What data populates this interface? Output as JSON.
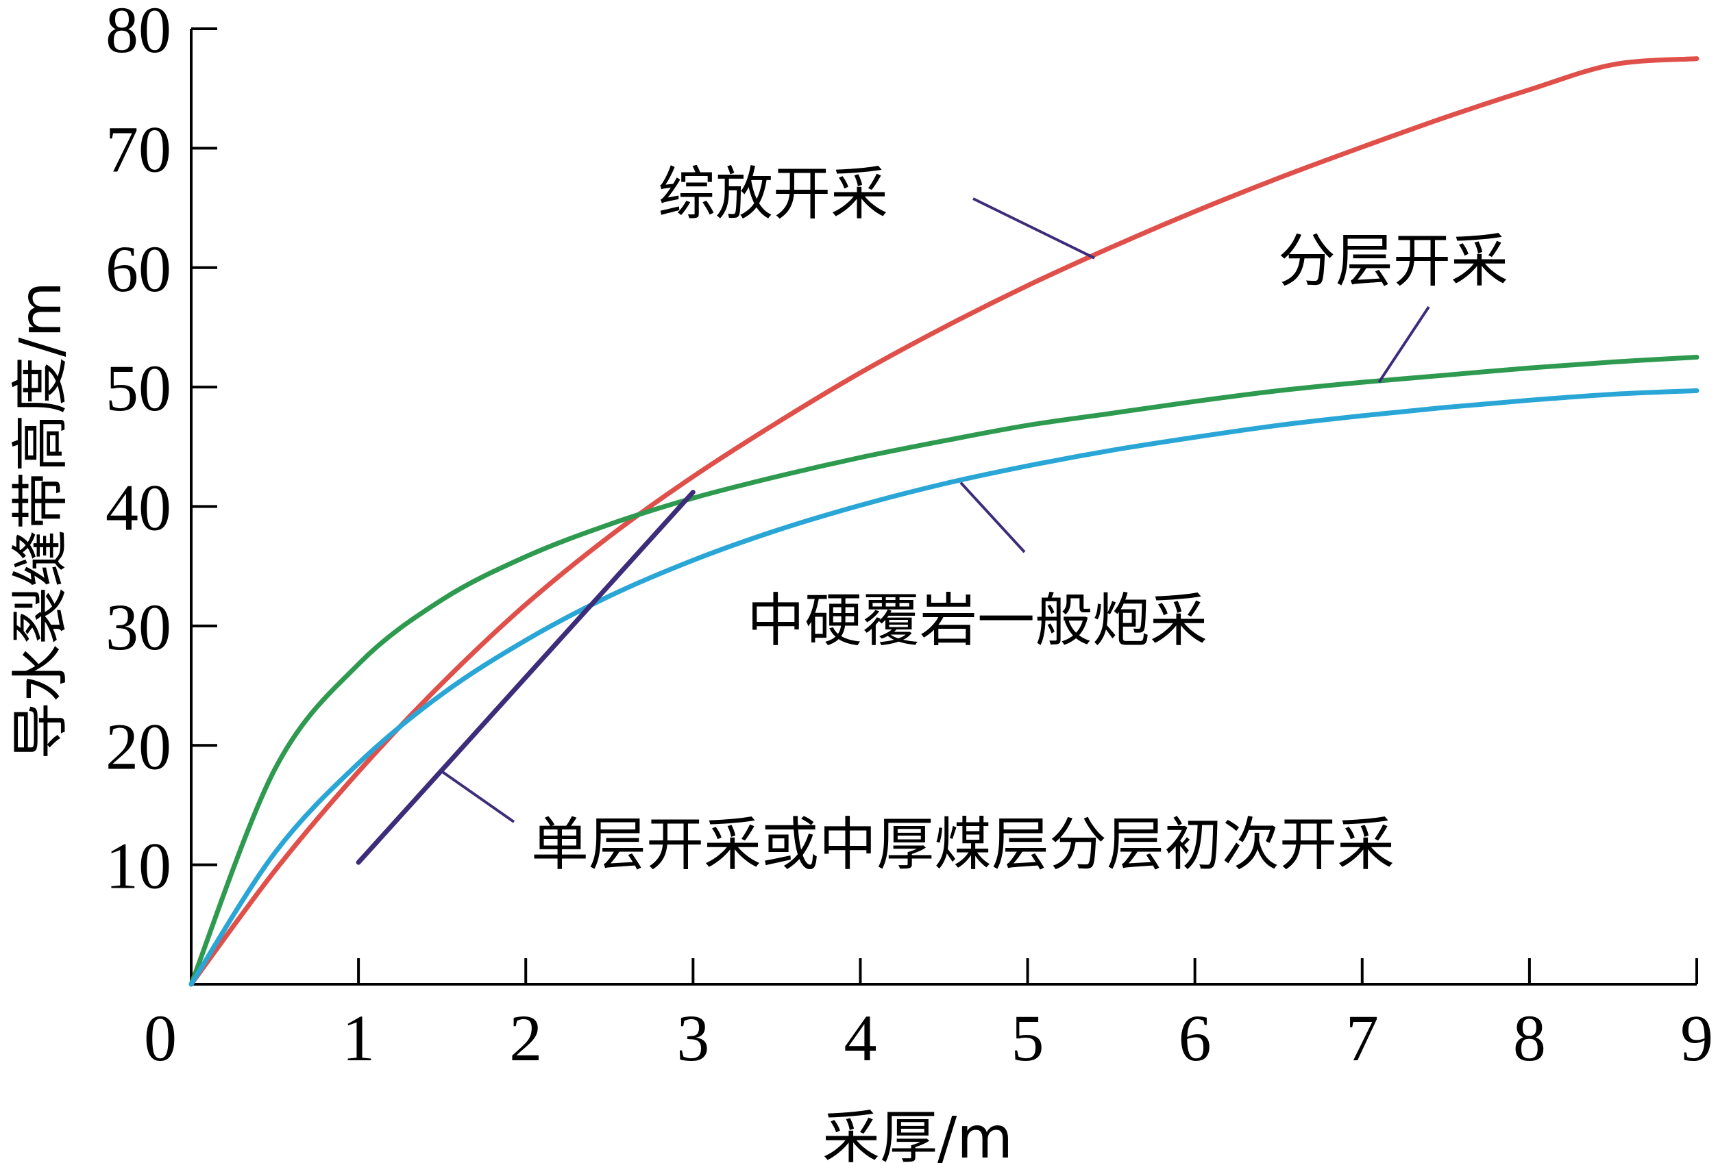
{
  "chart_data": {
    "type": "line",
    "xlabel": "采厚/m",
    "ylabel": "导水裂缝带高度/m",
    "xlim": [
      0,
      9
    ],
    "ylim": [
      0,
      80
    ],
    "x_ticks": [
      "0",
      "1",
      "2",
      "3",
      "4",
      "5",
      "6",
      "7",
      "8",
      "9"
    ],
    "y_ticks": [
      "10",
      "20",
      "30",
      "40",
      "50",
      "60",
      "70",
      "80"
    ],
    "grid": false,
    "series": [
      {
        "name": "综放开采",
        "color": "#e0504a",
        "x": [
          0,
          0.5,
          1,
          1.5,
          2,
          2.5,
          3,
          3.5,
          4,
          4.5,
          5,
          5.5,
          6,
          6.5,
          7,
          7.5,
          8,
          8.5,
          9
        ],
        "y": [
          0,
          9.5,
          17.8,
          25.2,
          31.8,
          37.5,
          42.5,
          47.0,
          51.2,
          55.0,
          58.5,
          61.7,
          64.7,
          67.5,
          70.1,
          72.6,
          74.9,
          77.0,
          77.5
        ]
      },
      {
        "name": "分层开采",
        "color": "#2e9a4f",
        "x": [
          0,
          0.5,
          1,
          1.5,
          2,
          2.5,
          3,
          3.5,
          4,
          4.5,
          5,
          5.5,
          6,
          6.5,
          7,
          7.5,
          8,
          8.5,
          9
        ],
        "y": [
          0,
          18.0,
          26.8,
          32.2,
          35.8,
          38.5,
          40.7,
          42.5,
          44.1,
          45.5,
          46.8,
          47.8,
          48.8,
          49.7,
          50.4,
          51.0,
          51.6,
          52.1,
          52.5
        ]
      },
      {
        "name": "中硬覆岩一般炮采",
        "color": "#2aa6d6",
        "x": [
          0,
          0.5,
          1,
          1.5,
          2,
          2.5,
          3,
          3.5,
          4,
          4.5,
          5,
          5.5,
          6,
          6.5,
          7,
          7.5,
          8,
          8.5,
          9
        ],
        "y": [
          0,
          11.0,
          18.5,
          24.3,
          28.8,
          32.5,
          35.5,
          38.0,
          40.1,
          41.9,
          43.4,
          44.7,
          45.8,
          46.8,
          47.6,
          48.3,
          48.9,
          49.4,
          49.7
        ]
      },
      {
        "name": "单层开采或中厚煤层分层初次开采",
        "color": "#3d2c7a",
        "x": [
          1,
          3
        ],
        "y": [
          10.2,
          41.2
        ]
      }
    ],
    "annotations": [
      {
        "text": "综放开采",
        "series": "综放开采"
      },
      {
        "text": "分层开采",
        "series": "分层开采"
      },
      {
        "text": "中硬覆岩一般炮采",
        "series": "中硬覆岩一般炮采"
      },
      {
        "text": "单层开采或中厚煤层分层初次开采",
        "series": "单层开采或中厚煤层分层初次开采"
      }
    ]
  }
}
